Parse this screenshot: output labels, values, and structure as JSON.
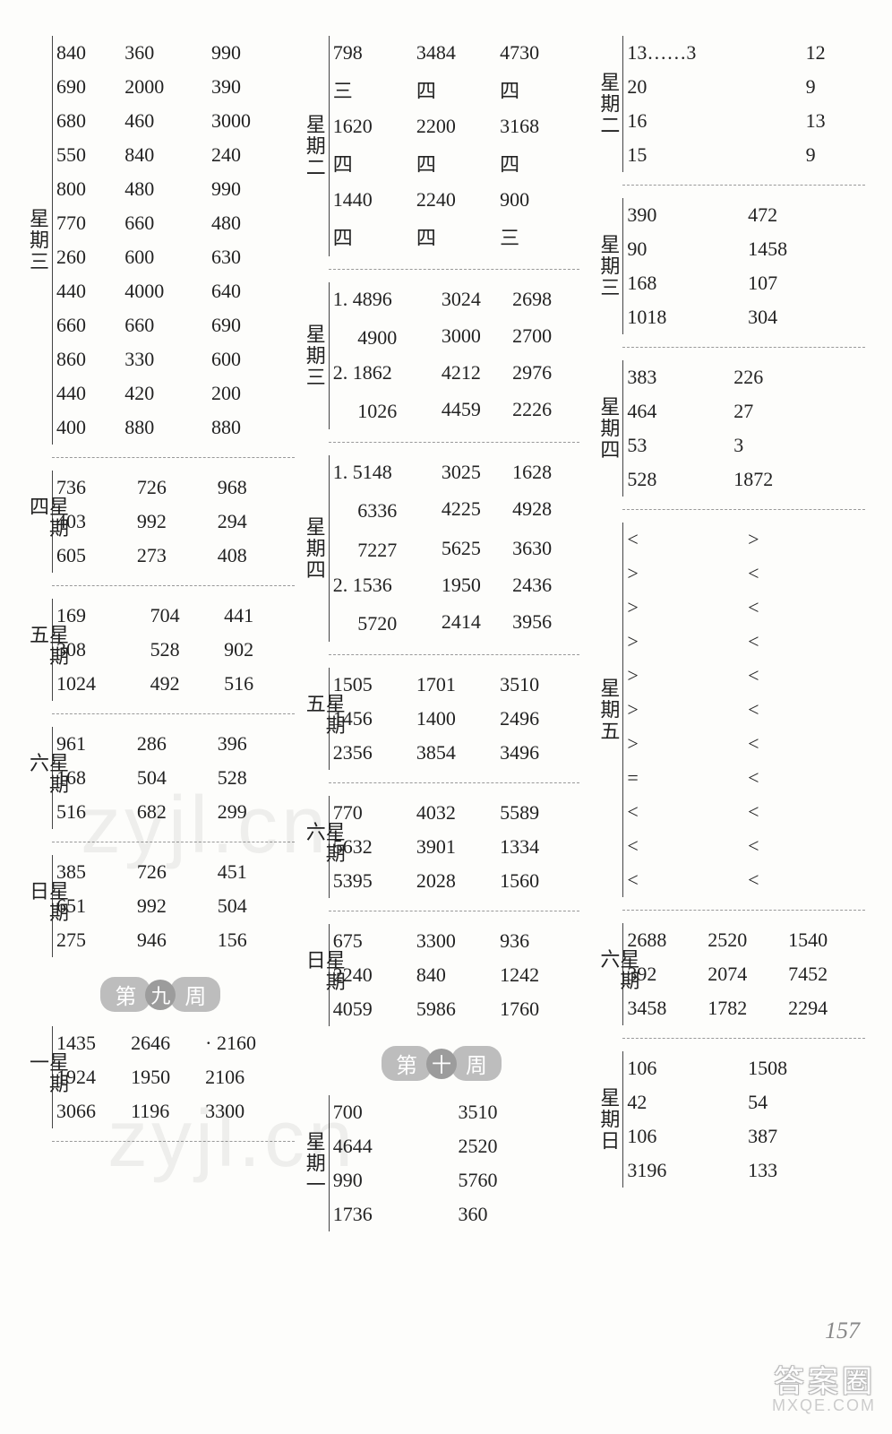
{
  "col1": {
    "wed": {
      "label": "星期三",
      "rows": [
        [
          "840",
          "360",
          "990"
        ],
        [
          "690",
          "2000",
          "390"
        ],
        [
          "680",
          "460",
          "3000"
        ],
        [
          "550",
          "840",
          "240"
        ],
        [
          "800",
          "480",
          "990"
        ],
        [
          "770",
          "660",
          "480"
        ],
        [
          "260",
          "600",
          "630"
        ],
        [
          "440",
          "4000",
          "640"
        ],
        [
          "660",
          "660",
          "690"
        ],
        [
          "860",
          "330",
          "600"
        ],
        [
          "440",
          "420",
          "200"
        ],
        [
          "400",
          "880",
          "880"
        ]
      ]
    },
    "thu": {
      "label": "星期四",
      "rows": [
        [
          "736",
          "726",
          "968"
        ],
        [
          "403",
          "992",
          "294"
        ],
        [
          "605",
          "273",
          "408"
        ]
      ]
    },
    "fri": {
      "label": "星期五",
      "rows": [
        [
          "169",
          "704",
          "441"
        ],
        [
          "308",
          "528",
          "902"
        ],
        [
          "1024",
          "492",
          "516"
        ]
      ]
    },
    "sat": {
      "label": "星期六",
      "rows": [
        [
          "961",
          "286",
          "396"
        ],
        [
          "168",
          "504",
          "528"
        ],
        [
          "516",
          "682",
          "299"
        ]
      ]
    },
    "sun": {
      "label": "星期日",
      "rows": [
        [
          "385",
          "726",
          "451"
        ],
        [
          "651",
          "992",
          "504"
        ],
        [
          "275",
          "946",
          "156"
        ]
      ]
    },
    "week9": {
      "left": "第",
      "c1": "九",
      "right": "周"
    },
    "mon9": {
      "label": "星期一",
      "rows": [
        [
          "1435",
          "2646",
          "· 2160"
        ],
        [
          "1924",
          "1950",
          "2106"
        ],
        [
          "3066",
          "1196",
          "3300"
        ]
      ]
    }
  },
  "col2": {
    "tue": {
      "label": "星期二",
      "rows": [
        [
          "798",
          "3484",
          "4730"
        ],
        [
          "三",
          "四",
          "四"
        ],
        [
          "1620",
          "2200",
          "3168"
        ],
        [
          "四",
          "四",
          "四"
        ],
        [
          "1440",
          "2240",
          "900"
        ],
        [
          "四",
          "四",
          "三"
        ]
      ]
    },
    "wed": {
      "label": "星期三",
      "rows": [
        [
          "1. 4896",
          "3024",
          "2698"
        ],
        [
          "　 4900",
          "3000",
          "2700"
        ],
        [
          "2. 1862",
          "4212",
          "2976"
        ],
        [
          "　 1026",
          "4459",
          "2226"
        ]
      ]
    },
    "thu": {
      "label": "星期四",
      "rows": [
        [
          "1. 5148",
          "3025",
          "1628"
        ],
        [
          "　 6336",
          "4225",
          "4928"
        ],
        [
          "　 7227",
          "5625",
          "3630"
        ],
        [
          "2. 1536",
          "1950",
          "2436"
        ],
        [
          "　 5720",
          "2414",
          "3956"
        ]
      ]
    },
    "fri": {
      "label": "星期五",
      "rows": [
        [
          "1505",
          "1701",
          "3510"
        ],
        [
          "1456",
          "1400",
          "2496"
        ],
        [
          "2356",
          "3854",
          "3496"
        ]
      ]
    },
    "sat": {
      "label": "星期六",
      "rows": [
        [
          "770",
          "4032",
          "5589"
        ],
        [
          "5632",
          "3901",
          "1334"
        ],
        [
          "5395",
          "2028",
          "1560"
        ]
      ]
    },
    "sun": {
      "label": "星期日",
      "rows": [
        [
          "675",
          "3300",
          "936"
        ],
        [
          "2240",
          "840",
          "1242"
        ],
        [
          "4059",
          "5986",
          "1760"
        ]
      ]
    },
    "week10": {
      "left": "第",
      "c1": "十",
      "right": "周"
    },
    "mon10": {
      "label": "星期一",
      "rows": [
        [
          "700",
          "3510"
        ],
        [
          "4644",
          "2520"
        ],
        [
          "990",
          "5760"
        ],
        [
          "1736",
          "360"
        ]
      ]
    }
  },
  "col3": {
    "tue": {
      "label": "星期二",
      "rows": [
        [
          "13……3",
          "12"
        ],
        [
          "20",
          "9"
        ],
        [
          "16",
          "13"
        ],
        [
          "15",
          "9"
        ]
      ]
    },
    "wed": {
      "label": "星期三",
      "rows": [
        [
          "390",
          "472"
        ],
        [
          "90",
          "1458"
        ],
        [
          "168",
          "107"
        ],
        [
          "1018",
          "304"
        ]
      ]
    },
    "thu": {
      "label": "星期四",
      "rows": [
        [
          "383",
          "226"
        ],
        [
          "464",
          "27"
        ],
        [
          "53",
          "3"
        ],
        [
          "528",
          "1872"
        ]
      ]
    },
    "fri": {
      "label": "星期五",
      "rows": [
        [
          "<",
          ">"
        ],
        [
          ">",
          "<"
        ],
        [
          ">",
          "<"
        ],
        [
          ">",
          "<"
        ],
        [
          ">",
          "<"
        ],
        [
          ">",
          "<"
        ],
        [
          ">",
          "<"
        ],
        [
          "=",
          "<"
        ],
        [
          "<",
          "<"
        ],
        [
          "<",
          "<"
        ],
        [
          "<",
          "<"
        ]
      ]
    },
    "sat": {
      "label": "星期六",
      "rows": [
        [
          "2688",
          "2520",
          "1540"
        ],
        [
          "392",
          "2074",
          "7452"
        ],
        [
          "3458",
          "1782",
          "2294"
        ]
      ]
    },
    "sun": {
      "label": "星期日",
      "rows": [
        [
          "106",
          "1508"
        ],
        [
          "42",
          "54"
        ],
        [
          "106",
          "387"
        ],
        [
          "3196",
          "133"
        ]
      ]
    }
  },
  "watermark": "zyjl.cn",
  "page_number": "157",
  "corner_tag": "答案圈",
  "corner_sub": "MXQE.COM"
}
